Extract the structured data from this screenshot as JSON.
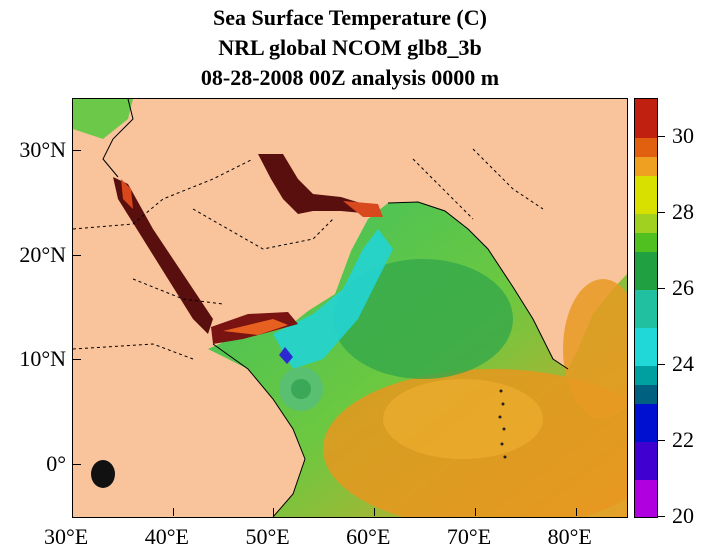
{
  "title": {
    "line1": "Sea Surface Temperature (C)",
    "line2": "NRL global NCOM glb8_3b",
    "line3": "08-28-2008 00Z analysis   0000 m"
  },
  "map": {
    "lon_range": [
      30,
      85
    ],
    "lat_range": [
      -5,
      35
    ],
    "x_ticks": [
      "30°E",
      "40°E",
      "50°E",
      "60°E",
      "70°E",
      "80°E"
    ],
    "y_ticks": [
      "30°N",
      "20°N",
      "10°N",
      "0°"
    ],
    "colors": {
      "land": "#f9c49c",
      "hot_gulf": "#5a0f0f",
      "warm_orange": "#e88a1a",
      "yellow_green": "#9fd24a",
      "green": "#33b04a",
      "cyan_upwelling": "#20d8d8",
      "blue_cold": "#2020c8"
    }
  },
  "colorbar": {
    "min": 20,
    "max": 31,
    "labels": [
      "30",
      "28",
      "26",
      "24",
      "22",
      "20"
    ],
    "label_values": [
      30,
      28,
      26,
      24,
      22,
      20
    ]
  }
}
